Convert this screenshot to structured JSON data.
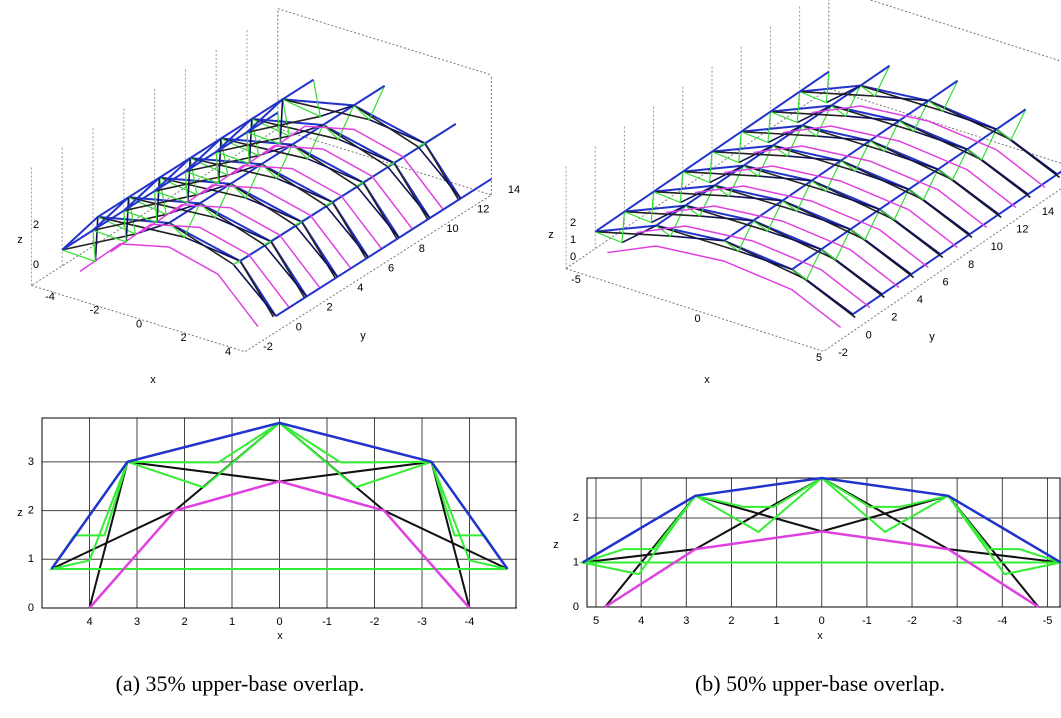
{
  "figure": {
    "panels": [
      {
        "caption": "(a) 35% upper-base overlap.",
        "top": {
          "x_label": "x",
          "y_label": "y",
          "z_label": "z",
          "xticks": [
            -4,
            -2,
            0,
            2,
            4
          ],
          "yticks": [
            -2,
            0,
            2,
            4,
            6,
            8,
            10,
            12,
            14
          ],
          "zticks": [
            0,
            2
          ]
        },
        "bottom": {
          "x_label": "x",
          "z_label": "z",
          "xlim": [
            5,
            -5
          ],
          "zlim": [
            0,
            3.9
          ],
          "xticks": [
            4,
            3,
            2,
            1,
            0,
            -1,
            -2,
            -3,
            -4
          ],
          "zticks": [
            0,
            1,
            2,
            3
          ],
          "grid": true
        }
      },
      {
        "caption": "(b) 50% upper-base overlap.",
        "top": {
          "x_label": "x",
          "y_label": "y",
          "z_label": "z",
          "xticks": [
            -5,
            0,
            5
          ],
          "yticks": [
            -2,
            0,
            2,
            4,
            6,
            8,
            10,
            12,
            14
          ],
          "zticks": [
            0,
            1,
            2
          ]
        },
        "bottom": {
          "x_label": "x",
          "z_label": "z",
          "xlim": [
            5.2,
            -5.3
          ],
          "zlim": [
            0,
            2.9
          ],
          "xticks": [
            5,
            4,
            3,
            2,
            1,
            0,
            -1,
            -2,
            -3,
            -4,
            -5
          ],
          "zticks": [
            0,
            1,
            2
          ],
          "grid": true
        }
      }
    ]
  }
}
